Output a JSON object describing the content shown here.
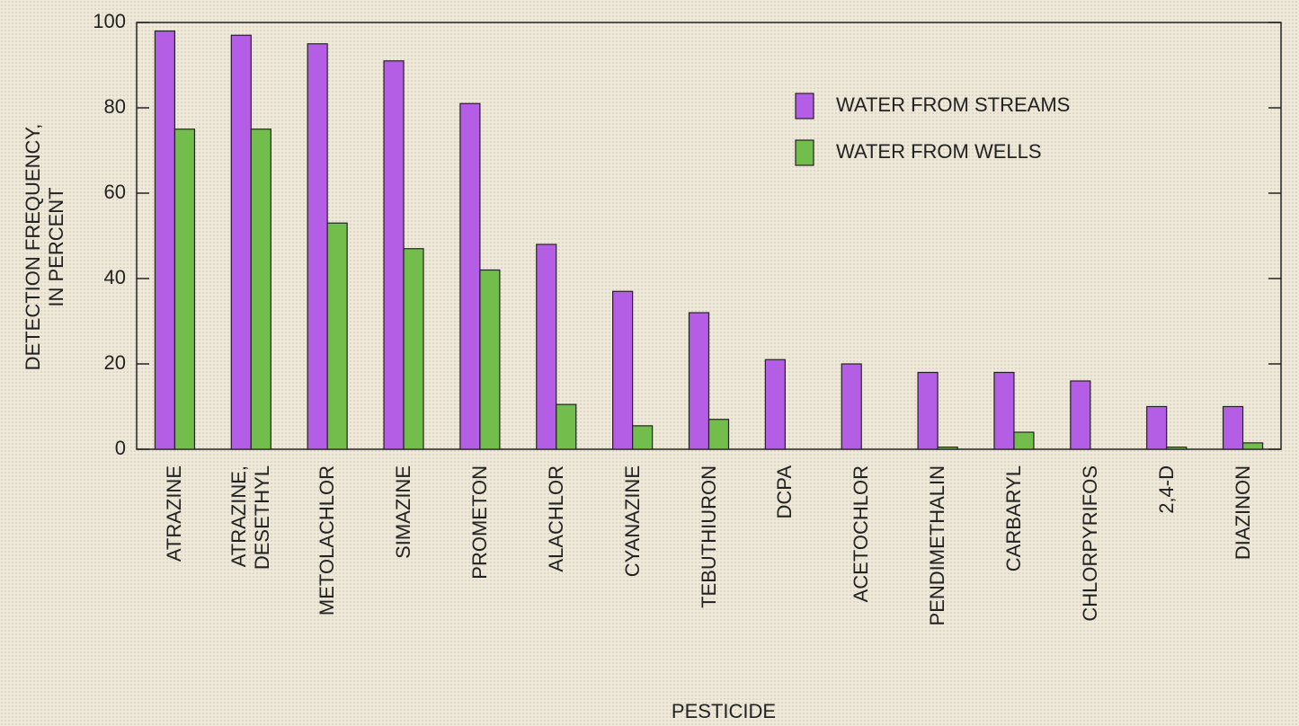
{
  "chart_data": {
    "type": "bar",
    "x_label": "PESTICIDE",
    "y_label": "DETECTION FREQUENCY,\nIN PERCENT",
    "categories": [
      "ATRAZINE",
      "ATRAZINE,\nDESETHYL",
      "METOLACHLOR",
      "SIMAZINE",
      "PROMETON",
      "ALACHLOR",
      "CYANAZINE",
      "TEBUTHIURON",
      "DCPA",
      "ACETOCHLOR",
      "PENDIMETHALIN",
      "CARBARYL",
      "CHLORPYRIFOS",
      "2,4-D",
      "DIAZINON"
    ],
    "series": [
      {
        "name": "WATER FROM STREAMS",
        "color": "#b45ee6",
        "values": [
          98,
          97,
          95,
          91,
          81,
          48,
          37,
          32,
          21,
          20,
          18,
          18,
          16,
          10,
          10
        ]
      },
      {
        "name": "WATER FROM WELLS",
        "color": "#72bd4c",
        "values": [
          75,
          75,
          53,
          47,
          42,
          10.5,
          5.5,
          7,
          0,
          0,
          0.5,
          4,
          0,
          0.5,
          1.5
        ]
      }
    ],
    "ylim": [
      0,
      100
    ],
    "yticks": [
      0,
      20,
      40,
      60,
      80,
      100
    ],
    "grid": false,
    "legend": "upper right"
  }
}
